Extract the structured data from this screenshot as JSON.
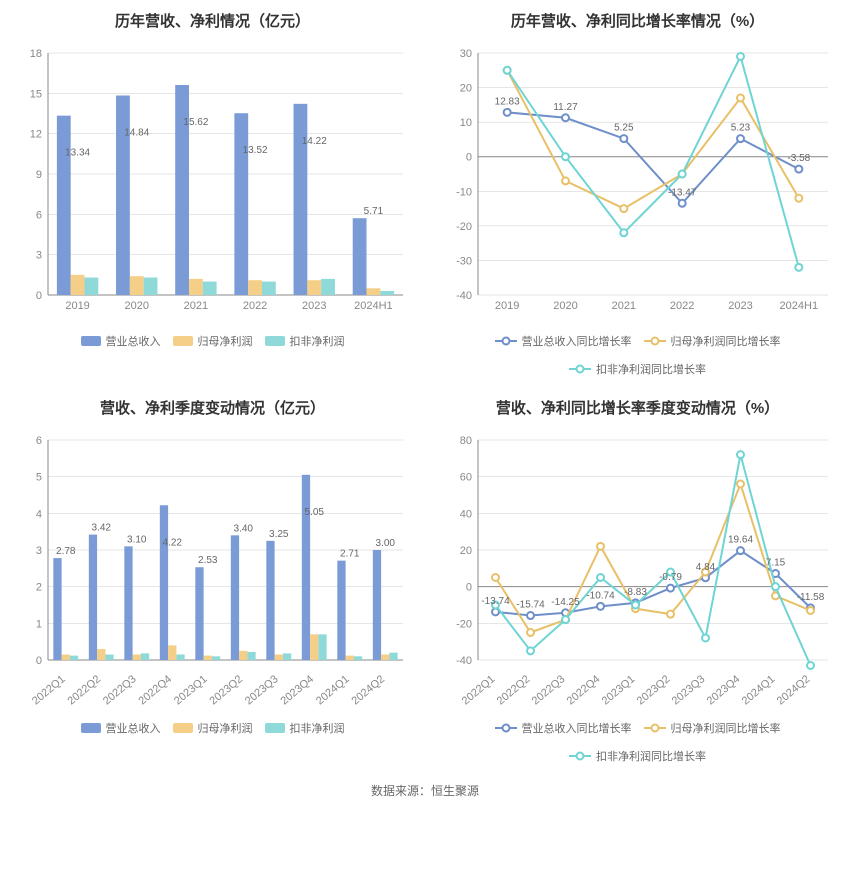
{
  "colors": {
    "bar1": "#7a9bd5",
    "bar2": "#f5cf87",
    "bar3": "#8fd9d9",
    "line1": "#6e8fc9",
    "line2": "#e8c068",
    "line3": "#6fd4d4",
    "grid": "#cccccc",
    "axis": "#888888",
    "text": "#666666",
    "title": "#333333",
    "bg": "#ffffff"
  },
  "chart1": {
    "title": "历年营收、净利情况（亿元）",
    "type": "bar",
    "categories": [
      "2019",
      "2020",
      "2021",
      "2022",
      "2023",
      "2024H1"
    ],
    "ylim": [
      0,
      18
    ],
    "ytick_step": 3,
    "series": [
      {
        "name": "营业总收入",
        "color": "#7a9bd5",
        "values": [
          13.34,
          14.84,
          15.62,
          13.52,
          14.22,
          5.71
        ]
      },
      {
        "name": "归母净利润",
        "color": "#f5cf87",
        "values": [
          1.5,
          1.4,
          1.2,
          1.1,
          1.1,
          0.5
        ]
      },
      {
        "name": "扣非净利润",
        "color": "#8fd9d9",
        "values": [
          1.3,
          1.3,
          1.0,
          1.0,
          1.2,
          0.3
        ]
      }
    ],
    "labels": [
      "13.34",
      "14.84",
      "15.62",
      "13.52",
      "14.22",
      "5.71"
    ],
    "legend": [
      "营业总收入",
      "归母净利润",
      "扣非净利润"
    ]
  },
  "chart2": {
    "title": "历年营收、净利同比增长率情况（%）",
    "type": "line",
    "categories": [
      "2019",
      "2020",
      "2021",
      "2022",
      "2023",
      "2024H1"
    ],
    "ylim": [
      -40,
      30
    ],
    "ytick_step": 10,
    "series": [
      {
        "name": "营业总收入同比增长率",
        "color": "#6e8fc9",
        "values": [
          12.83,
          11.27,
          5.25,
          -13.47,
          5.23,
          -3.58
        ]
      },
      {
        "name": "归母净利润同比增长率",
        "color": "#e8c068",
        "values": [
          25,
          -7,
          -15,
          -5,
          17,
          -12
        ]
      },
      {
        "name": "扣非净利润同比增长率",
        "color": "#6fd4d4",
        "values": [
          25,
          0,
          -22,
          -5,
          29,
          -32
        ]
      }
    ],
    "labels": [
      "12.83",
      "11.27",
      "5.25",
      "-13.47",
      "5.23",
      "-3.58"
    ],
    "legend": [
      "营业总收入同比增长率",
      "归母净利润同比增长率",
      "扣非净利润同比增长率"
    ]
  },
  "chart3": {
    "title": "营收、净利季度变动情况（亿元）",
    "type": "bar",
    "categories": [
      "2022Q1",
      "2022Q2",
      "2022Q3",
      "2022Q4",
      "2023Q1",
      "2023Q2",
      "2023Q3",
      "2023Q4",
      "2024Q1",
      "2024Q2"
    ],
    "ylim": [
      0,
      6
    ],
    "ytick_step": 1,
    "series": [
      {
        "name": "营业总收入",
        "color": "#7a9bd5",
        "values": [
          2.78,
          3.42,
          3.1,
          4.22,
          2.53,
          3.4,
          3.25,
          5.05,
          2.71,
          3.0
        ]
      },
      {
        "name": "归母净利润",
        "color": "#f5cf87",
        "values": [
          0.15,
          0.3,
          0.15,
          0.4,
          0.12,
          0.25,
          0.15,
          0.7,
          0.12,
          0.15
        ]
      },
      {
        "name": "扣非净利润",
        "color": "#8fd9d9",
        "values": [
          0.12,
          0.15,
          0.18,
          0.15,
          0.1,
          0.22,
          0.18,
          0.7,
          0.1,
          0.2
        ]
      }
    ],
    "labels": [
      "2.78",
      "3.42",
      "3.10",
      "4.22",
      "2.53",
      "3.40",
      "3.25",
      "5.05",
      "2.71",
      "3.00"
    ],
    "legend": [
      "营业总收入",
      "归母净利润",
      "扣非净利润"
    ],
    "rotate_x": true
  },
  "chart4": {
    "title": "营收、净利同比增长率季度变动情况（%）",
    "type": "line",
    "categories": [
      "2022Q1",
      "2022Q2",
      "2022Q3",
      "2022Q4",
      "2023Q1",
      "2023Q2",
      "2023Q3",
      "2023Q4",
      "2024Q1",
      "2024Q2"
    ],
    "ylim": [
      -40,
      80
    ],
    "ytick_step": 20,
    "series": [
      {
        "name": "营业总收入同比增长率",
        "color": "#6e8fc9",
        "values": [
          -13.74,
          -15.74,
          -14.25,
          -10.74,
          -8.83,
          -0.79,
          4.84,
          19.64,
          7.15,
          -11.58
        ]
      },
      {
        "name": "归母净利润同比增长率",
        "color": "#e8c068",
        "values": [
          5,
          -25,
          -18,
          22,
          -12,
          -15,
          8,
          56,
          -5,
          -13
        ]
      },
      {
        "name": "扣非净利润同比增长率",
        "color": "#6fd4d4",
        "values": [
          -10,
          -35,
          -18,
          5,
          -10,
          8,
          -28,
          72,
          0,
          -43
        ]
      }
    ],
    "labels": [
      "-13.74",
      "-15.74",
      "-14.25",
      "-10.74",
      "-8.83",
      "-0.79",
      "4.84",
      "19.64",
      "7.15",
      "-11.58"
    ],
    "legend": [
      "营业总收入同比增长率",
      "归母净利润同比增长率",
      "扣非净利润同比增长率"
    ],
    "rotate_x": true
  },
  "footer": "数据来源：恒生聚源"
}
